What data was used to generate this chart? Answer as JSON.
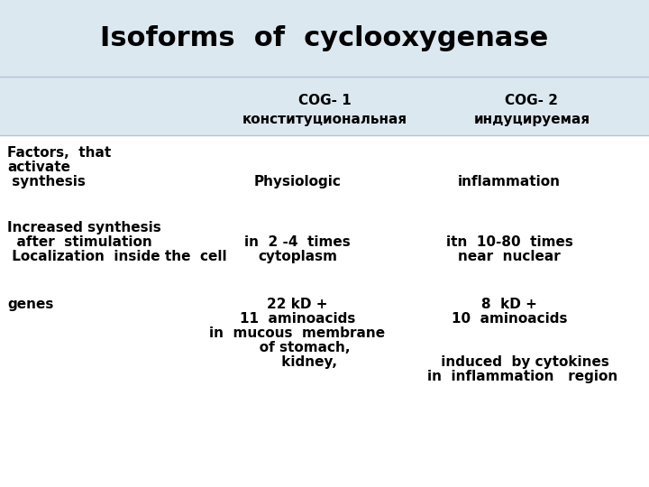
{
  "title": "Isoforms  of  cyclooxygenase",
  "title_bg": "#dce8f0",
  "header_bg": "#dce8f0",
  "body_bg": "#ffffff",
  "title_fontsize": 22,
  "header_fontsize": 11,
  "body_fontsize": 11,
  "col1_header_line1": "COG- 1",
  "col1_header_line2": "конституциональная",
  "col2_header_line1": "COG- 2",
  "col2_header_line2": "индуцируемая",
  "row0_left_l1": "Factors,  that",
  "row0_left_l2": "activate",
  "row0_left_l3": " synthesis",
  "row0_mid": "Physiologic",
  "row0_right": "inflammation",
  "row1_left_l1": "Increased synthesis",
  "row1_left_l2": "  after  stimulation",
  "row1_left_l3": " Localization  inside the  cell",
  "row1_mid_l1": "in  2 -4  times",
  "row1_mid_l2": "cytoplasm",
  "row1_right_l1": "itn  10-80  times",
  "row1_right_l2": "near  nuclear",
  "row2_left": "genes",
  "row2_mid_l1": "22 kD +",
  "row2_mid_l2": "11  aminoacids",
  "row2_mid_l3": "in  mucous  membrane",
  "row2_mid_l4": "   of stomach,",
  "row2_mid_l5": "     kidney,",
  "row2_right_l1": "8  kD +",
  "row2_right_l2": "10  aminoacids",
  "row2_right_l3": " induced  by cytokines",
  "row2_right_l4": "in  inflammation   region"
}
